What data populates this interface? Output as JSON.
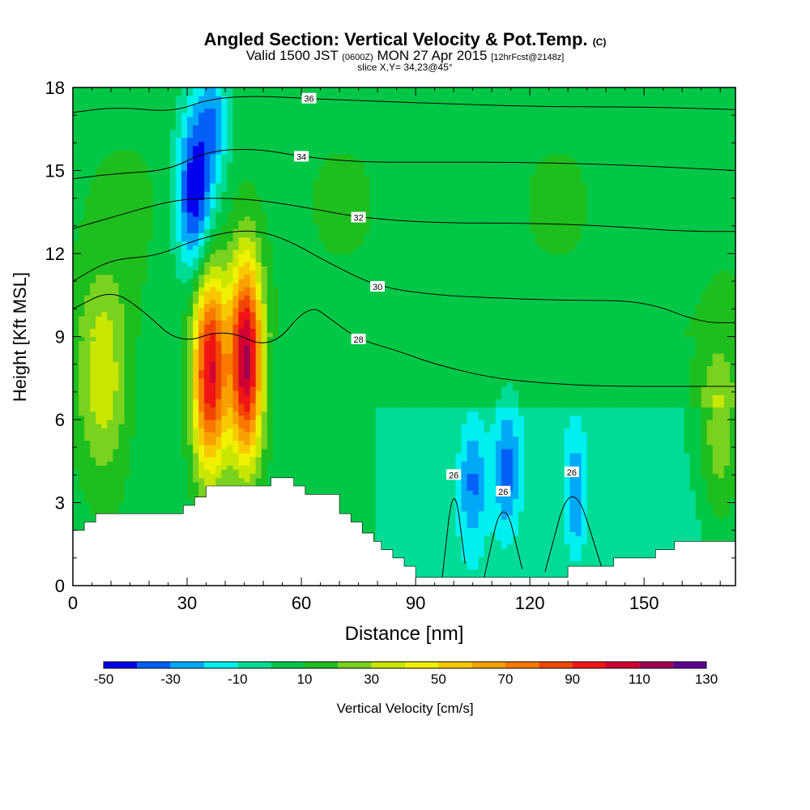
{
  "header": {
    "title": "Angled Section: Vertical Velocity & Pot.Temp.",
    "copyright": "(C)",
    "valid_prefix": "Valid 1500 JST",
    "valid_utc": "(0600Z)",
    "valid_date": "MON 27 Apr 2015",
    "forecast": "[12hrFcst@2148z]",
    "slice": "slice X,Y= 34,23@45°"
  },
  "chart_data": {
    "type": "heatmap",
    "xlabel": "Distance [nm]",
    "ylabel": "Height [Kft MSL]",
    "xlim": [
      0,
      174
    ],
    "ylim": [
      0,
      18
    ],
    "x_ticks": [
      "0",
      "30",
      "60",
      "90",
      "120",
      "150"
    ],
    "y_ticks": [
      "0",
      "3",
      "6",
      "9",
      "12",
      "15",
      "18"
    ],
    "colorbar": {
      "label": "Vertical Velocity [cm/s]",
      "tick_labels": [
        "-50",
        "-30",
        "-10",
        "10",
        "30",
        "50",
        "70",
        "90",
        "110",
        "130"
      ],
      "bins": [
        {
          "from": -50,
          "to": -40,
          "color": "#0000ee"
        },
        {
          "from": -40,
          "to": -30,
          "color": "#0060f8"
        },
        {
          "from": -30,
          "to": -20,
          "color": "#00a8f8"
        },
        {
          "from": -20,
          "to": -10,
          "color": "#00f0f0"
        },
        {
          "from": -10,
          "to": 0,
          "color": "#00dc96"
        },
        {
          "from": 0,
          "to": 10,
          "color": "#00c846"
        },
        {
          "from": 10,
          "to": 20,
          "color": "#1ebe1e"
        },
        {
          "from": 20,
          "to": 30,
          "color": "#78d21e"
        },
        {
          "from": 30,
          "to": 40,
          "color": "#c8e600"
        },
        {
          "from": 40,
          "to": 50,
          "color": "#f0f000"
        },
        {
          "from": 50,
          "to": 60,
          "color": "#f8c800"
        },
        {
          "from": 60,
          "to": 70,
          "color": "#f8a000"
        },
        {
          "from": 70,
          "to": 80,
          "color": "#f87800"
        },
        {
          "from": 80,
          "to": 90,
          "color": "#f04600"
        },
        {
          "from": 90,
          "to": 100,
          "color": "#f01414"
        },
        {
          "from": 100,
          "to": 110,
          "color": "#d20032"
        },
        {
          "from": 110,
          "to": 120,
          "color": "#a00050"
        },
        {
          "from": 120,
          "to": 130,
          "color": "#600090"
        }
      ]
    },
    "field_features": [
      {
        "kind": "updraft",
        "x": 36,
        "y": 7.8,
        "peak": 95,
        "sx": 3.2,
        "sy": 2.6
      },
      {
        "kind": "updraft",
        "x": 45.5,
        "y": 8.2,
        "peak": 105,
        "sx": 3.0,
        "sy": 2.6
      },
      {
        "kind": "updraft",
        "x": 8,
        "y": 7.5,
        "peak": 35,
        "sx": 5,
        "sy": 2.5
      },
      {
        "kind": "updraft",
        "x": 170,
        "y": 5.5,
        "peak": 30,
        "sx": 4,
        "sy": 2.5
      },
      {
        "kind": "downdraft",
        "x": 32,
        "y": 14.2,
        "peak": -55,
        "sx": 3.5,
        "sy": 2.2
      },
      {
        "kind": "downdraft",
        "x": 37,
        "y": 17,
        "peak": -30,
        "sx": 3,
        "sy": 1.5
      },
      {
        "kind": "downdraft",
        "x": 105,
        "y": 3.8,
        "peak": -28,
        "sx": 2.5,
        "sy": 1.6
      },
      {
        "kind": "downdraft",
        "x": 114,
        "y": 4.2,
        "peak": -30,
        "sx": 2.5,
        "sy": 1.6
      },
      {
        "kind": "downdraft",
        "x": 132,
        "y": 3.2,
        "peak": -28,
        "sx": 2,
        "sy": 1.5
      }
    ],
    "theta_contours": [
      {
        "label": "26",
        "points": [
          [
            97,
            0.3
          ],
          [
            100,
            4
          ],
          [
            103,
            0.8
          ]
        ]
      },
      {
        "label": "26",
        "points": [
          [
            108,
            0.3
          ],
          [
            113,
            3.4
          ],
          [
            118,
            0.6
          ]
        ]
      },
      {
        "label": "26",
        "points": [
          [
            124,
            0.5
          ],
          [
            131,
            4.1
          ],
          [
            139,
            0.6
          ]
        ]
      },
      {
        "label": "28",
        "points": [
          [
            0,
            10
          ],
          [
            10,
            10.7
          ],
          [
            18,
            10
          ],
          [
            28,
            8.7
          ],
          [
            40,
            9.3
          ],
          [
            52,
            8.5
          ],
          [
            62,
            10.2
          ],
          [
            68,
            9.6
          ],
          [
            75,
            8.9
          ],
          [
            85,
            8.5
          ],
          [
            95,
            8
          ],
          [
            110,
            7.5
          ],
          [
            125,
            7.3
          ],
          [
            140,
            7.2
          ],
          [
            160,
            7.2
          ],
          [
            174,
            7.2
          ]
        ]
      },
      {
        "label": "30",
        "points": [
          [
            0,
            11
          ],
          [
            10,
            11.8
          ],
          [
            22,
            11.9
          ],
          [
            32,
            12.5
          ],
          [
            45,
            12.9
          ],
          [
            55,
            12.6
          ],
          [
            68,
            11.6
          ],
          [
            80,
            10.8
          ],
          [
            95,
            10.5
          ],
          [
            110,
            10.4
          ],
          [
            130,
            10.3
          ],
          [
            150,
            10.3
          ],
          [
            165,
            9.5
          ],
          [
            174,
            9.5
          ]
        ]
      },
      {
        "label": "32",
        "points": [
          [
            0,
            12.9
          ],
          [
            10,
            13.3
          ],
          [
            20,
            13.7
          ],
          [
            30,
            14
          ],
          [
            45,
            14
          ],
          [
            60,
            13.7
          ],
          [
            75,
            13.3
          ],
          [
            95,
            13.1
          ],
          [
            120,
            13.1
          ],
          [
            140,
            13
          ],
          [
            160,
            12.8
          ],
          [
            174,
            12.8
          ]
        ]
      },
      {
        "label": "34",
        "points": [
          [
            0,
            14.7
          ],
          [
            12,
            14.9
          ],
          [
            25,
            15
          ],
          [
            35,
            15.7
          ],
          [
            48,
            15.8
          ],
          [
            60,
            15.5
          ],
          [
            75,
            15.3
          ],
          [
            95,
            15.3
          ],
          [
            120,
            15.3
          ],
          [
            145,
            15.2
          ],
          [
            174,
            15
          ]
        ]
      },
      {
        "label": "36",
        "points": [
          [
            0,
            17.1
          ],
          [
            12,
            17.3
          ],
          [
            26,
            17.1
          ],
          [
            36,
            17.6
          ],
          [
            48,
            17.7
          ],
          [
            62,
            17.6
          ],
          [
            80,
            17.5
          ],
          [
            100,
            17.4
          ],
          [
            125,
            17.3
          ],
          [
            150,
            17.3
          ],
          [
            174,
            17.2
          ]
        ]
      }
    ],
    "terrain": [
      [
        0,
        2
      ],
      [
        3,
        2
      ],
      [
        3,
        2.3
      ],
      [
        6,
        2.3
      ],
      [
        6,
        2.6
      ],
      [
        29,
        2.6
      ],
      [
        29,
        2.9
      ],
      [
        32,
        2.9
      ],
      [
        32,
        3.2
      ],
      [
        35,
        3.2
      ],
      [
        35,
        3.6
      ],
      [
        52,
        3.6
      ],
      [
        52,
        3.9
      ],
      [
        58,
        3.9
      ],
      [
        58,
        3.6
      ],
      [
        61,
        3.6
      ],
      [
        61,
        3.3
      ],
      [
        70,
        3.3
      ],
      [
        70,
        2.6
      ],
      [
        73,
        2.6
      ],
      [
        73,
        2.3
      ],
      [
        76,
        2.3
      ],
      [
        76,
        1.9
      ],
      [
        79,
        1.9
      ],
      [
        79,
        1.6
      ],
      [
        81,
        1.6
      ],
      [
        81,
        1.3
      ],
      [
        84,
        1.3
      ],
      [
        84,
        1
      ],
      [
        87,
        1
      ],
      [
        87,
        0.7
      ],
      [
        90,
        0.7
      ],
      [
        90,
        0.3
      ],
      [
        130,
        0.3
      ],
      [
        130,
        0.7
      ],
      [
        142,
        0.7
      ],
      [
        142,
        1
      ],
      [
        153,
        1
      ],
      [
        153,
        1.3
      ],
      [
        158,
        1.3
      ],
      [
        158,
        1.6
      ],
      [
        174,
        1.6
      ]
    ]
  }
}
